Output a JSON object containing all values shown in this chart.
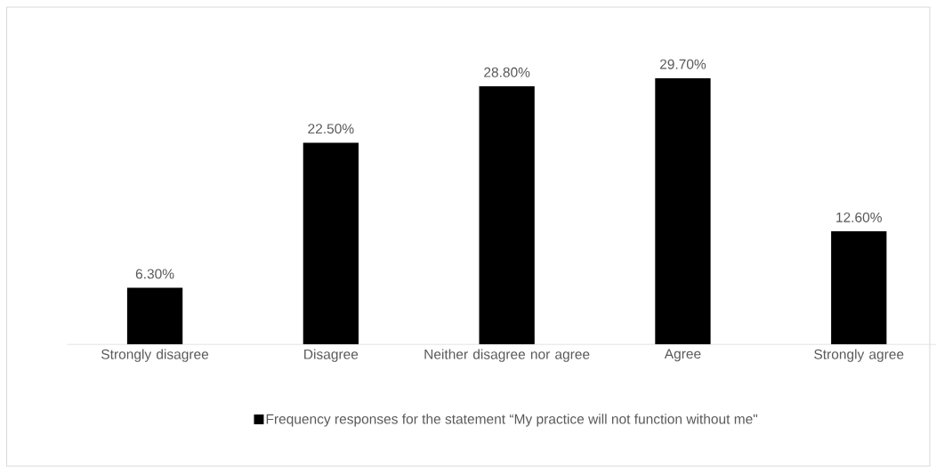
{
  "chart_data": {
    "type": "bar",
    "categories": [
      "Strongly disagree",
      "Disagree",
      "Neither disagree nor agree",
      "Agree",
      "Strongly agree"
    ],
    "series": [
      {
        "name": "Frequency responses for the statement “My practice will not function without me\"",
        "color": "#000000",
        "values": [
          6.3,
          22.5,
          28.8,
          29.7,
          12.6
        ],
        "value_labels": [
          "6.30%",
          "22.50%",
          "28.80%",
          "29.70%",
          "12.60%"
        ]
      }
    ],
    "legend": "bottom"
  }
}
